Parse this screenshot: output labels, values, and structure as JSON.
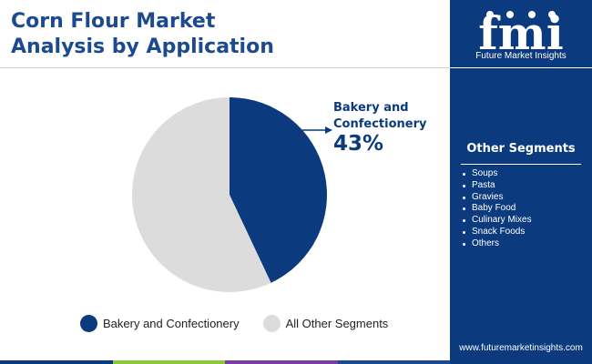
{
  "header": {
    "title_line1": "Corn Flour Market",
    "title_line2": "Analysis by Application"
  },
  "brand": {
    "logo_letters": "fmi",
    "name": "Future Market Insights",
    "url": "www.futuremarketinsights.com"
  },
  "sidebar": {
    "title": "Other Segments",
    "items": [
      "Soups",
      "Pasta",
      "Gravies",
      "Baby Food",
      "Culinary Mixes",
      "Snack Foods",
      "Others"
    ]
  },
  "callout": {
    "label": "Bakery and Confectionery",
    "value": "43%"
  },
  "colors": {
    "primary": "#0b3a7e",
    "secondary": "#dcdcdc",
    "title": "#1c4a8f",
    "bar": [
      "#0b3a7e",
      "#8cc63f",
      "#7b3fa0",
      "#1c4a8f"
    ]
  },
  "chart_data": {
    "type": "pie",
    "categories": [
      "Bakery and Confectionery",
      "All Other Segments"
    ],
    "values": [
      43,
      57
    ],
    "unit": "%",
    "legend_position": "bottom"
  }
}
